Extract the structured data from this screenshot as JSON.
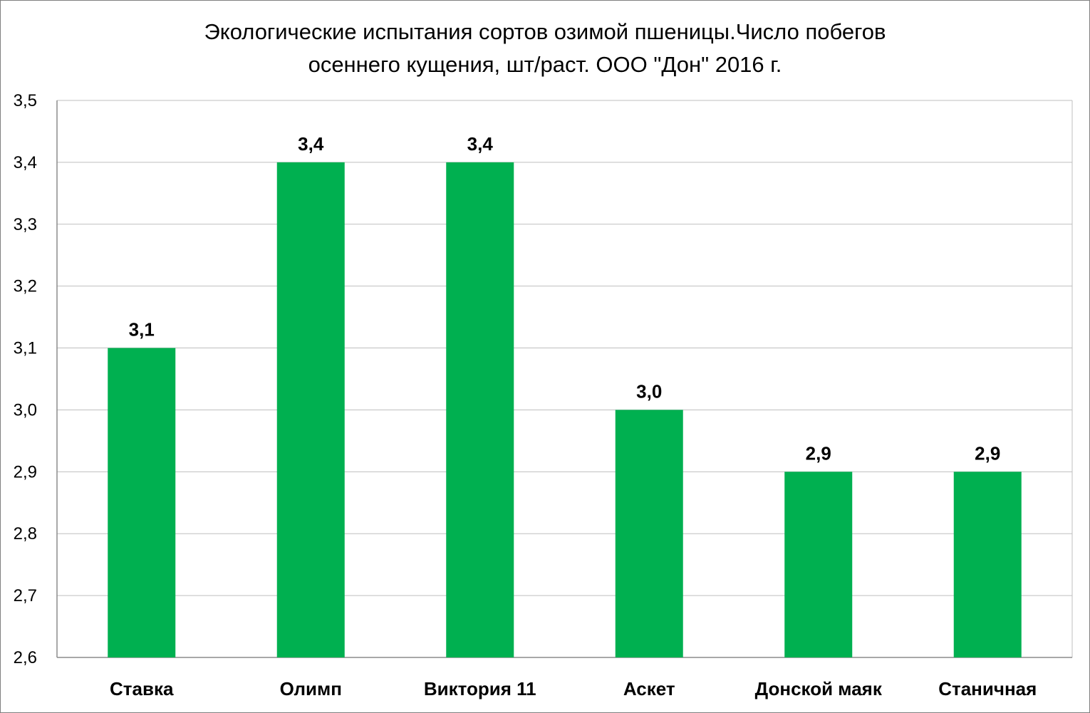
{
  "chart_data": {
    "type": "bar",
    "title_lines": [
      "Экологические испытания сортов озимой пшеницы.Число побегов",
      "осеннего кущения, шт/раст. ООО \"Дон\" 2016 г."
    ],
    "categories": [
      "Ставка",
      "Олимп",
      "Виктория 11",
      "Аскет",
      "Донской маяк",
      "Станичная"
    ],
    "values": [
      3.1,
      3.4,
      3.4,
      3.0,
      2.9,
      2.9
    ],
    "data_labels": [
      "3,1",
      "3,4",
      "3,4",
      "3,0",
      "2,9",
      "2,9"
    ],
    "yticks": [
      "2,6",
      "2,7",
      "2,8",
      "2,9",
      "3,0",
      "3,1",
      "3,2",
      "3,3",
      "3,4",
      "3,5"
    ],
    "ylim": [
      2.6,
      3.5
    ],
    "ytick_step": 0.1,
    "xlabel": "",
    "ylabel": "",
    "grid": true,
    "legend": "none",
    "bar_color": "#00b050",
    "grid_color": "#bfbfbf"
  }
}
